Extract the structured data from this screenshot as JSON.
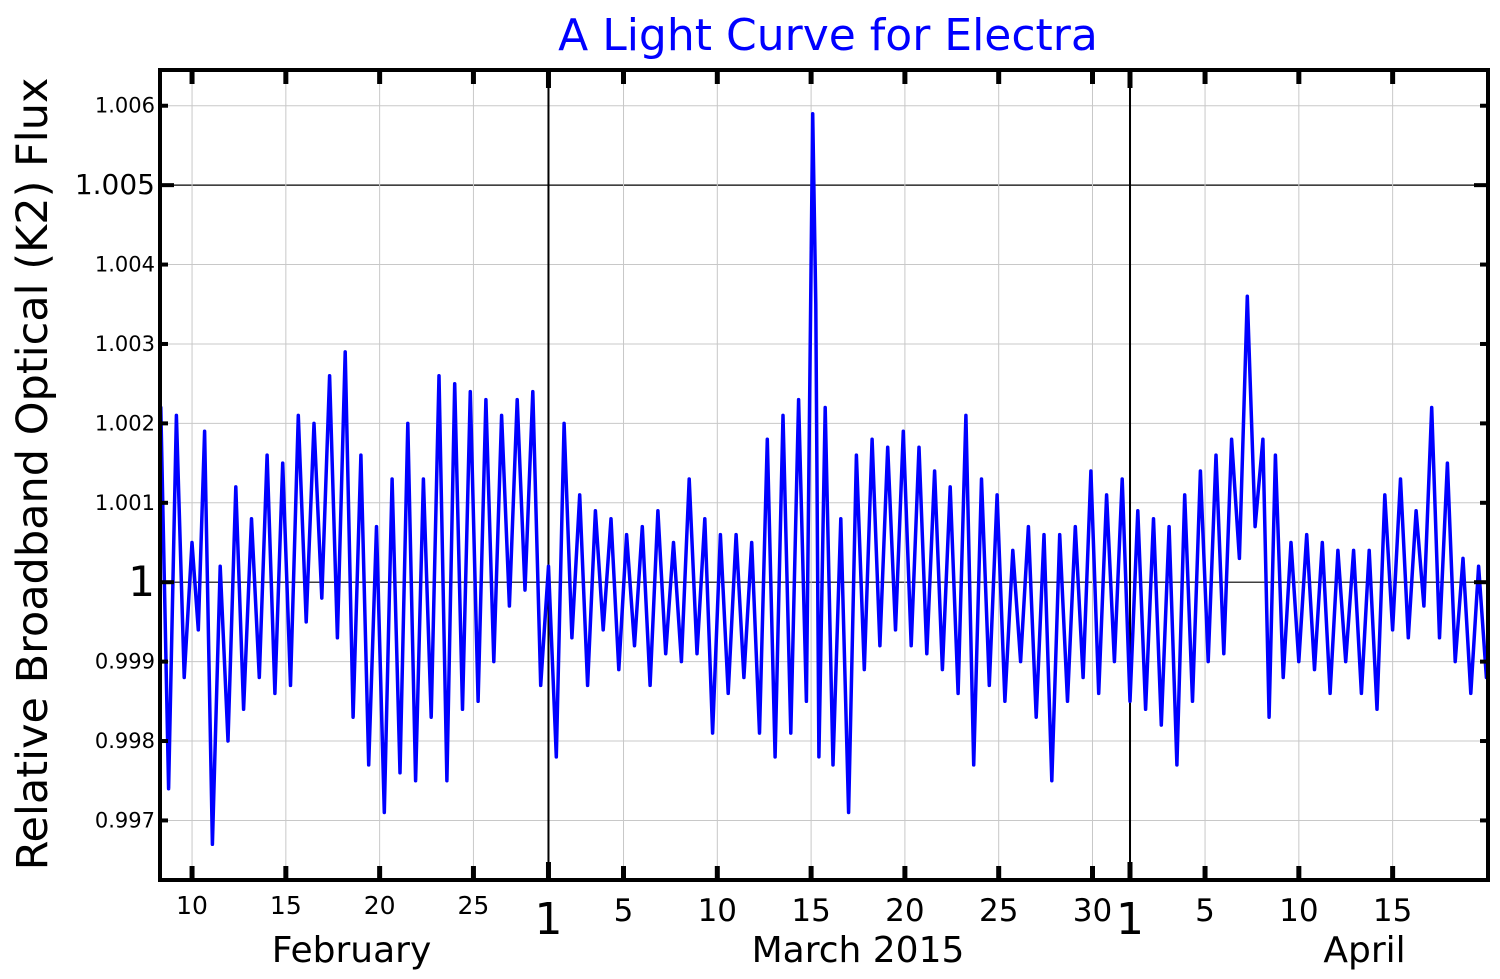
{
  "chart_data": {
    "type": "line",
    "title": "A Light Curve for Electra",
    "ylabel": "Relative Broadband Optical (K2) Flux",
    "xlabel": "March 2015",
    "ylim": [
      0.99625,
      1.00645
    ],
    "xlim": [
      "2015-02-08T07:00",
      "2015-04-20T02:00"
    ],
    "grid": true,
    "y_ticks": [
      {
        "value": 0.997,
        "label": "0.997",
        "major": false
      },
      {
        "value": 0.998,
        "label": "0.998",
        "major": false
      },
      {
        "value": 0.999,
        "label": "0.999",
        "major": false
      },
      {
        "value": 1.0,
        "label": "1",
        "major": true
      },
      {
        "value": 1.001,
        "label": "1.001",
        "major": false
      },
      {
        "value": 1.002,
        "label": "1.002",
        "major": false
      },
      {
        "value": 1.003,
        "label": "1.003",
        "major": false
      },
      {
        "value": 1.004,
        "label": "1.004",
        "major": false
      },
      {
        "value": 1.005,
        "label": "1.005",
        "major": true
      },
      {
        "value": 1.006,
        "label": "1.006",
        "major": false
      }
    ],
    "x_ticks": [
      {
        "date": "2015-02-10",
        "label": "10",
        "major": false
      },
      {
        "date": "2015-02-15",
        "label": "15",
        "major": false
      },
      {
        "date": "2015-02-20",
        "label": "20",
        "major": false
      },
      {
        "date": "2015-02-25",
        "label": "25",
        "major": false
      },
      {
        "date": "2015-03-01",
        "label": "1",
        "major": true
      },
      {
        "date": "2015-03-05",
        "label": "5",
        "major": false
      },
      {
        "date": "2015-03-10",
        "label": "10",
        "major": false
      },
      {
        "date": "2015-03-15",
        "label": "15",
        "major": false
      },
      {
        "date": "2015-03-20",
        "label": "20",
        "major": false
      },
      {
        "date": "2015-03-25",
        "label": "25",
        "major": false
      },
      {
        "date": "2015-03-30",
        "label": "30",
        "major": false
      },
      {
        "date": "2015-04-01",
        "label": "1",
        "major": true
      },
      {
        "date": "2015-04-05",
        "label": "5",
        "major": false
      },
      {
        "date": "2015-04-10",
        "label": "10",
        "major": false
      },
      {
        "date": "2015-04-15",
        "label": "15",
        "major": false
      }
    ],
    "month_labels": [
      {
        "date": "2015-02-18T12:00",
        "label": "February"
      },
      {
        "date": "2015-03-17T12:00",
        "label": "March 2015"
      },
      {
        "date": "2015-04-13T12:00",
        "label": "April"
      }
    ],
    "series": [
      {
        "color": "#0000ff",
        "x": [
          "2015-02-08T08:00",
          "2015-02-08T18:00",
          "2015-02-09T04:00",
          "2015-02-09T14:00",
          "2015-02-10T00:00",
          "2015-02-10T08:00",
          "2015-02-10T16:00",
          "2015-02-11T02:00",
          "2015-02-11T12:00",
          "2015-02-11T22:00",
          "2015-02-12T08:00",
          "2015-02-12T18:00",
          "2015-02-13T04:00",
          "2015-02-13T14:00",
          "2015-02-14T00:00",
          "2015-02-14T10:00",
          "2015-02-14T20:00",
          "2015-02-15T06:00",
          "2015-02-15T16:00",
          "2015-02-16T02:00",
          "2015-02-16T12:00",
          "2015-02-16T22:00",
          "2015-02-17T08:00",
          "2015-02-17T18:00",
          "2015-02-18T04:00",
          "2015-02-18T14:00",
          "2015-02-19T00:00",
          "2015-02-19T10:00",
          "2015-02-19T20:00",
          "2015-02-20T06:00",
          "2015-02-20T16:00",
          "2015-02-21T02:00",
          "2015-02-21T12:00",
          "2015-02-21T22:00",
          "2015-02-22T08:00",
          "2015-02-22T18:00",
          "2015-02-23T04:00",
          "2015-02-23T14:00",
          "2015-02-24T00:00",
          "2015-02-24T10:00",
          "2015-02-24T20:00",
          "2015-02-25T06:00",
          "2015-02-25T16:00",
          "2015-02-26T02:00",
          "2015-02-26T12:00",
          "2015-02-26T22:00",
          "2015-02-27T08:00",
          "2015-02-27T18:00",
          "2015-02-28T04:00",
          "2015-02-28T14:00",
          "2015-03-01T00:00",
          "2015-03-01T10:00",
          "2015-03-01T20:00",
          "2015-03-02T06:00",
          "2015-03-02T16:00",
          "2015-03-03T02:00",
          "2015-03-03T12:00",
          "2015-03-03T22:00",
          "2015-03-04T08:00",
          "2015-03-04T18:00",
          "2015-03-05T04:00",
          "2015-03-05T14:00",
          "2015-03-06T00:00",
          "2015-03-06T10:00",
          "2015-03-06T20:00",
          "2015-03-07T06:00",
          "2015-03-07T16:00",
          "2015-03-08T02:00",
          "2015-03-08T12:00",
          "2015-03-08T22:00",
          "2015-03-09T08:00",
          "2015-03-09T18:00",
          "2015-03-10T04:00",
          "2015-03-10T14:00",
          "2015-03-11T00:00",
          "2015-03-11T10:00",
          "2015-03-11T20:00",
          "2015-03-12T06:00",
          "2015-03-12T16:00",
          "2015-03-13T02:00",
          "2015-03-13T12:00",
          "2015-03-13T22:00",
          "2015-03-14T08:00",
          "2015-03-14T18:00",
          "2015-03-15T02:00",
          "2015-03-15T06:00",
          "2015-03-15T10:00",
          "2015-03-15T18:00",
          "2015-03-16T04:00",
          "2015-03-16T14:00",
          "2015-03-17T00:00",
          "2015-03-17T10:00",
          "2015-03-17T20:00",
          "2015-03-18T06:00",
          "2015-03-18T16:00",
          "2015-03-19T02:00",
          "2015-03-19T12:00",
          "2015-03-19T22:00",
          "2015-03-20T08:00",
          "2015-03-20T18:00",
          "2015-03-21T04:00",
          "2015-03-21T14:00",
          "2015-03-22T00:00",
          "2015-03-22T10:00",
          "2015-03-22T20:00",
          "2015-03-23T06:00",
          "2015-03-23T16:00",
          "2015-03-24T02:00",
          "2015-03-24T12:00",
          "2015-03-24T22:00",
          "2015-03-25T08:00",
          "2015-03-25T18:00",
          "2015-03-26T04:00",
          "2015-03-26T14:00",
          "2015-03-27T00:00",
          "2015-03-27T10:00",
          "2015-03-27T20:00",
          "2015-03-28T06:00",
          "2015-03-28T16:00",
          "2015-03-29T02:00",
          "2015-03-29T12:00",
          "2015-03-29T22:00",
          "2015-03-30T08:00",
          "2015-03-30T18:00",
          "2015-03-31T04:00",
          "2015-03-31T14:00",
          "2015-04-01T00:00",
          "2015-04-01T10:00",
          "2015-04-01T20:00",
          "2015-04-02T06:00",
          "2015-04-02T16:00",
          "2015-04-03T02:00",
          "2015-04-03T12:00",
          "2015-04-03T22:00",
          "2015-04-04T08:00",
          "2015-04-04T18:00",
          "2015-04-05T04:00",
          "2015-04-05T14:00",
          "2015-04-06T00:00",
          "2015-04-06T10:00",
          "2015-04-06T20:00",
          "2015-04-07T06:00",
          "2015-04-07T16:00",
          "2015-04-08T02:00",
          "2015-04-08T10:00",
          "2015-04-08T18:00",
          "2015-04-09T04:00",
          "2015-04-09T14:00",
          "2015-04-10T00:00",
          "2015-04-10T10:00",
          "2015-04-10T20:00",
          "2015-04-11T06:00",
          "2015-04-11T16:00",
          "2015-04-12T02:00",
          "2015-04-12T12:00",
          "2015-04-12T22:00",
          "2015-04-13T08:00",
          "2015-04-13T18:00",
          "2015-04-14T04:00",
          "2015-04-14T14:00",
          "2015-04-15T00:00",
          "2015-04-15T10:00",
          "2015-04-15T20:00",
          "2015-04-16T06:00",
          "2015-04-16T16:00",
          "2015-04-17T02:00",
          "2015-04-17T12:00",
          "2015-04-17T22:00",
          "2015-04-18T08:00",
          "2015-04-18T18:00",
          "2015-04-19T04:00",
          "2015-04-19T14:00",
          "2015-04-20T00:00"
        ],
        "y": [
          1.0022,
          0.9974,
          1.0021,
          0.9988,
          1.0005,
          0.9994,
          1.0019,
          0.9967,
          1.0002,
          0.998,
          1.0012,
          0.9984,
          1.0008,
          0.9988,
          1.0016,
          0.9986,
          1.0015,
          0.9987,
          1.0021,
          0.9995,
          1.002,
          0.9998,
          1.0026,
          0.9993,
          1.0029,
          0.9983,
          1.0016,
          0.9977,
          1.0007,
          0.9971,
          1.0013,
          0.9976,
          1.002,
          0.9975,
          1.0013,
          0.9983,
          1.0026,
          0.9975,
          1.0025,
          0.9984,
          1.0024,
          0.9985,
          1.0023,
          0.999,
          1.0021,
          0.9997,
          1.0023,
          0.9999,
          1.0024,
          0.9987,
          1.0002,
          0.9978,
          1.002,
          0.9993,
          1.0011,
          0.9987,
          1.0009,
          0.9994,
          1.0008,
          0.9989,
          1.0006,
          0.9992,
          1.0007,
          0.9987,
          1.0009,
          0.9991,
          1.0005,
          0.999,
          1.0013,
          0.9991,
          1.0008,
          0.9981,
          1.0006,
          0.9986,
          1.0006,
          0.9988,
          1.0005,
          0.9981,
          1.0018,
          0.9978,
          1.0021,
          0.9981,
          1.0023,
          0.9985,
          1.0059,
          1.0035,
          0.9978,
          1.0022,
          0.9977,
          1.0008,
          0.9971,
          1.0016,
          0.9989,
          1.0018,
          0.9992,
          1.0017,
          0.9994,
          1.0019,
          0.9992,
          1.0017,
          0.9991,
          1.0014,
          0.9989,
          1.0012,
          0.9986,
          1.0021,
          0.9977,
          1.0013,
          0.9987,
          1.0011,
          0.9985,
          1.0004,
          0.999,
          1.0007,
          0.9983,
          1.0006,
          0.9975,
          1.0006,
          0.9985,
          1.0007,
          0.9988,
          1.0014,
          0.9986,
          1.0011,
          0.999,
          1.0013,
          0.9985,
          1.0009,
          0.9984,
          1.0008,
          0.9982,
          1.0007,
          0.9977,
          1.0011,
          0.9985,
          1.0014,
          0.999,
          1.0016,
          0.9991,
          1.0018,
          1.0003,
          1.0036,
          1.0007,
          1.0018,
          0.9983,
          1.0016,
          0.9988,
          1.0005,
          0.999,
          1.0006,
          0.9989,
          1.0005,
          0.9986,
          1.0004,
          0.999,
          1.0004,
          0.9986,
          1.0004,
          0.9984,
          1.0011,
          0.9994,
          1.0013,
          0.9993,
          1.0009,
          0.9997,
          1.0022,
          0.9993,
          1.0015,
          0.999,
          1.0003,
          0.9986,
          1.0002,
          0.9988
        ]
      }
    ]
  }
}
